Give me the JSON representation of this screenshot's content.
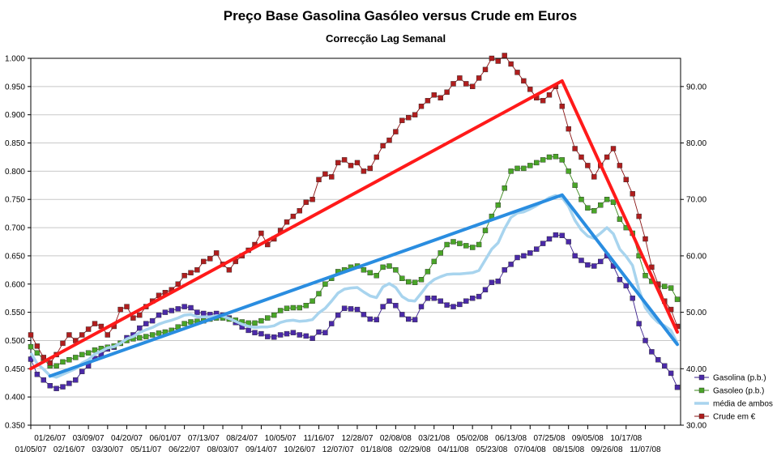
{
  "chart_data": {
    "type": "line",
    "title": "Preço Base Gasolina Gasóleo versus Crude em Euros",
    "subtitle": "Correcção Lag Semanal",
    "y_left": {
      "min": 0.35,
      "max": 1.0,
      "ticks": [
        "0.350",
        "0.400",
        "0.450",
        "0.500",
        "0.550",
        "0.600",
        "0.650",
        "0.700",
        "0.750",
        "0.800",
        "0.850",
        "0.900",
        "0.950",
        "1.000"
      ]
    },
    "y_right": {
      "min": 30,
      "max": 95,
      "ticks": [
        "30.00",
        "40.00",
        "50.00",
        "60.00",
        "70.00",
        "80.00",
        "90.00"
      ]
    },
    "x_labels_row1": [
      "01/26/07",
      "03/09/07",
      "04/20/07",
      "06/01/07",
      "07/13/07",
      "08/24/07",
      "10/05/07",
      "11/16/07",
      "12/28/07",
      "02/08/08",
      "03/21/08",
      "05/02/08",
      "06/13/08",
      "07/25/08",
      "09/05/08",
      "10/17/08"
    ],
    "x_labels_row2": [
      "01/05/07",
      "02/16/07",
      "03/30/07",
      "05/11/07",
      "06/22/07",
      "08/03/07",
      "09/14/07",
      "10/26/07",
      "12/07/07",
      "01/18/08",
      "02/29/08",
      "04/11/08",
      "05/23/08",
      "07/04/08",
      "08/15/08",
      "09/26/08",
      "11/07/08"
    ],
    "series": [
      {
        "name": "Gasolina (p.b.)",
        "color": "#3a1f8c",
        "marker": "#4b2aa8",
        "axis": "left",
        "values": [
          0.467,
          0.44,
          0.43,
          0.42,
          0.415,
          0.418,
          0.424,
          0.43,
          0.445,
          0.455,
          0.468,
          0.475,
          0.485,
          0.488,
          0.495,
          0.505,
          0.51,
          0.522,
          0.53,
          0.535,
          0.545,
          0.55,
          0.553,
          0.556,
          0.56,
          0.558,
          0.55,
          0.548,
          0.546,
          0.548,
          0.545,
          0.54,
          0.532,
          0.524,
          0.518,
          0.514,
          0.512,
          0.507,
          0.506,
          0.51,
          0.512,
          0.514,
          0.51,
          0.508,
          0.504,
          0.515,
          0.514,
          0.53,
          0.545,
          0.557,
          0.556,
          0.555,
          0.546,
          0.538,
          0.537,
          0.56,
          0.57,
          0.562,
          0.546,
          0.538,
          0.537,
          0.56,
          0.575,
          0.575,
          0.57,
          0.563,
          0.56,
          0.564,
          0.57,
          0.575,
          0.578,
          0.59,
          0.603,
          0.605,
          0.625,
          0.635,
          0.647,
          0.65,
          0.655,
          0.662,
          0.672,
          0.68,
          0.687,
          0.686,
          0.675,
          0.65,
          0.642,
          0.634,
          0.632,
          0.64,
          0.65,
          0.632,
          0.608,
          0.597,
          0.575,
          0.53,
          0.5,
          0.48,
          0.466,
          0.455,
          0.442,
          0.417
        ]
      },
      {
        "name": "Gasoleo (p.b.)",
        "color": "#3d8a1e",
        "marker": "#4aa528",
        "axis": "left",
        "values": [
          0.489,
          0.478,
          0.467,
          0.455,
          0.455,
          0.462,
          0.466,
          0.47,
          0.475,
          0.478,
          0.483,
          0.486,
          0.488,
          0.49,
          0.495,
          0.5,
          0.503,
          0.505,
          0.507,
          0.51,
          0.513,
          0.515,
          0.518,
          0.524,
          0.53,
          0.533,
          0.534,
          0.535,
          0.538,
          0.54,
          0.54,
          0.538,
          0.536,
          0.533,
          0.531,
          0.531,
          0.535,
          0.54,
          0.545,
          0.553,
          0.557,
          0.558,
          0.558,
          0.562,
          0.57,
          0.583,
          0.6,
          0.61,
          0.622,
          0.625,
          0.63,
          0.632,
          0.625,
          0.62,
          0.615,
          0.63,
          0.632,
          0.625,
          0.61,
          0.604,
          0.603,
          0.608,
          0.622,
          0.64,
          0.655,
          0.67,
          0.675,
          0.672,
          0.668,
          0.665,
          0.67,
          0.695,
          0.72,
          0.74,
          0.77,
          0.8,
          0.805,
          0.805,
          0.81,
          0.815,
          0.82,
          0.825,
          0.826,
          0.82,
          0.8,
          0.775,
          0.75,
          0.735,
          0.73,
          0.74,
          0.75,
          0.745,
          0.715,
          0.7,
          0.69,
          0.65,
          0.615,
          0.605,
          0.597,
          0.596,
          0.593,
          0.573
        ]
      },
      {
        "name": "média de ambos",
        "color": "#a8d4ee",
        "axis": "left",
        "values": [
          0.478,
          0.459,
          0.449,
          0.438,
          0.435,
          0.44,
          0.445,
          0.45,
          0.46,
          0.466,
          0.476,
          0.481,
          0.487,
          0.489,
          0.495,
          0.503,
          0.507,
          0.514,
          0.519,
          0.523,
          0.529,
          0.533,
          0.536,
          0.54,
          0.545,
          0.546,
          0.542,
          0.542,
          0.542,
          0.544,
          0.543,
          0.539,
          0.534,
          0.529,
          0.525,
          0.523,
          0.524,
          0.524,
          0.526,
          0.532,
          0.535,
          0.536,
          0.534,
          0.535,
          0.537,
          0.549,
          0.557,
          0.57,
          0.584,
          0.591,
          0.593,
          0.594,
          0.586,
          0.579,
          0.576,
          0.595,
          0.601,
          0.594,
          0.578,
          0.571,
          0.57,
          0.584,
          0.599,
          0.608,
          0.613,
          0.617,
          0.618,
          0.618,
          0.619,
          0.62,
          0.624,
          0.643,
          0.662,
          0.673,
          0.698,
          0.718,
          0.726,
          0.728,
          0.733,
          0.739,
          0.746,
          0.753,
          0.757,
          0.753,
          0.738,
          0.713,
          0.696,
          0.685,
          0.681,
          0.69,
          0.7,
          0.689,
          0.662,
          0.649,
          0.633,
          0.59,
          0.558,
          0.543,
          0.532,
          0.526,
          0.518,
          0.495
        ]
      },
      {
        "name": "Crude em €",
        "color": "#8a1515",
        "marker": "#b01e1e",
        "axis": "right",
        "values": [
          46.0,
          44.0,
          42.0,
          41.0,
          42.5,
          44.5,
          46.0,
          45.0,
          46.0,
          47.0,
          48.0,
          47.5,
          46.0,
          47.5,
          50.5,
          51.0,
          49.0,
          49.5,
          51.0,
          52.0,
          53.0,
          53.5,
          54.0,
          55.0,
          56.5,
          57.0,
          57.5,
          59.0,
          59.5,
          60.5,
          58.5,
          57.5,
          59.0,
          60.0,
          61.0,
          62.0,
          64.0,
          62.0,
          63.0,
          64.5,
          66.0,
          67.0,
          68.0,
          69.5,
          70.0,
          73.5,
          74.5,
          74.0,
          76.5,
          77.0,
          76.0,
          76.5,
          75.0,
          75.5,
          77.5,
          79.5,
          80.5,
          82.0,
          84.0,
          84.5,
          85.0,
          86.5,
          87.5,
          88.5,
          88.0,
          89.0,
          90.5,
          91.5,
          90.5,
          90.0,
          91.5,
          93.0,
          95.0,
          94.5,
          95.5,
          94.0,
          92.5,
          91.0,
          89.5,
          88.0,
          87.5,
          88.5,
          90.0,
          86.5,
          82.5,
          79.0,
          77.5,
          76.0,
          74.0,
          76.0,
          77.5,
          79.0,
          76.0,
          73.5,
          71.0,
          67.0,
          63.0,
          58.0,
          55.0,
          52.0,
          50.5,
          47.5
        ]
      }
    ],
    "trend_lines": [
      {
        "color": "#ff1a1a",
        "axis": "left",
        "points": [
          [
            0,
            0.45
          ],
          [
            83,
            0.96
          ],
          [
            101,
            0.515
          ]
        ]
      },
      {
        "color": "#2a8de0",
        "axis": "left",
        "points": [
          [
            3,
            0.437
          ],
          [
            83,
            0.758
          ],
          [
            101,
            0.493
          ]
        ]
      }
    ],
    "grid": true,
    "legend": "bottom-right"
  }
}
